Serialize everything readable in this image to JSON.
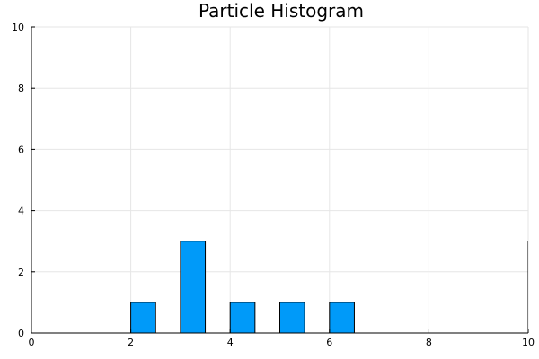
{
  "chart_data": {
    "type": "bar",
    "title": "Particle Histogram",
    "xlabel": "",
    "ylabel": "",
    "xlim": [
      0,
      10
    ],
    "ylim": [
      0,
      10
    ],
    "x_ticks": [
      0,
      2,
      4,
      6,
      8,
      10
    ],
    "y_ticks": [
      0,
      2,
      4,
      6,
      8,
      10
    ],
    "grid": true,
    "bar_color": "#009af9",
    "bins": [
      {
        "start": 2.0,
        "end": 2.5,
        "count": 1
      },
      {
        "start": 3.0,
        "end": 3.5,
        "count": 3
      },
      {
        "start": 4.0,
        "end": 4.5,
        "count": 1
      },
      {
        "start": 5.0,
        "end": 5.5,
        "count": 1
      },
      {
        "start": 6.0,
        "end": 6.5,
        "count": 1
      },
      {
        "start": 10.0,
        "end": 10.5,
        "count": 3
      }
    ]
  }
}
